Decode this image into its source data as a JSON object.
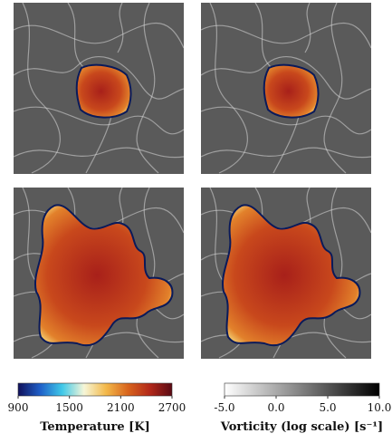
{
  "colorbars": [
    {
      "label": "Temperature [K]",
      "lim": [
        900,
        2700
      ],
      "ticks": [
        900,
        1500,
        2100,
        2700
      ],
      "colors": [
        "#10105a",
        "#1f5fc8",
        "#3fc8e8",
        "#f6f6d8",
        "#f3b94a",
        "#d8641d",
        "#b2281a",
        "#5a0a14"
      ]
    },
    {
      "label": "Vorticity (log scale) [s⁻¹]",
      "lim": [
        -5,
        10
      ],
      "ticks": [
        {
          "value": -5,
          "label": "-5.0"
        },
        {
          "value": 0,
          "label": "0.0"
        },
        {
          "value": 5,
          "label": "5.0"
        },
        {
          "value": 10,
          "label": "10.0"
        }
      ],
      "colors": [
        "#ffffff",
        "#000000"
      ]
    }
  ]
}
